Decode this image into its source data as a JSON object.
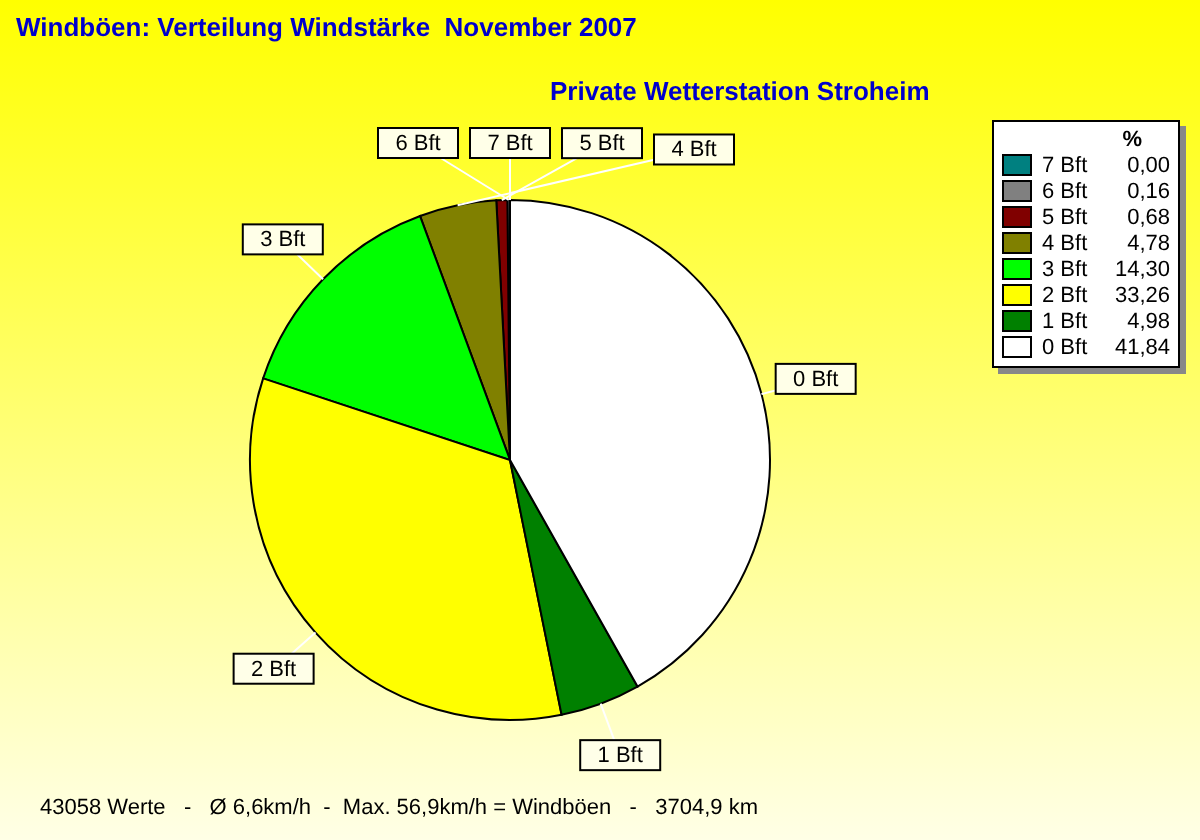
{
  "chart_data": {
    "type": "pie",
    "title": "Windböen: Verteilung Windstärke  November 2007",
    "subtitle": "Private Wetterstation Stroheim",
    "legend_title": "%",
    "legend": "right",
    "categories": [
      "7 Bft",
      "6 Bft",
      "5 Bft",
      "4 Bft",
      "3 Bft",
      "2 Bft",
      "1 Bft",
      "0 Bft"
    ],
    "values": [
      0.0,
      0.16,
      0.68,
      4.78,
      14.3,
      33.26,
      4.98,
      41.84
    ],
    "value_labels": [
      "0,00",
      "0,16",
      "0,68",
      "4,78",
      "14,30",
      "33,26",
      "4,98",
      "41,84"
    ],
    "colors": [
      "#008080",
      "#808080",
      "#800000",
      "#808000",
      "#00ff00",
      "#ffff00",
      "#008000",
      "#ffffff"
    ],
    "annotations": [
      "43058 Werte   -   Ø 6,6km/h  -  Max. 56,9km/h = Windböen   -   3704,9 km"
    ]
  }
}
